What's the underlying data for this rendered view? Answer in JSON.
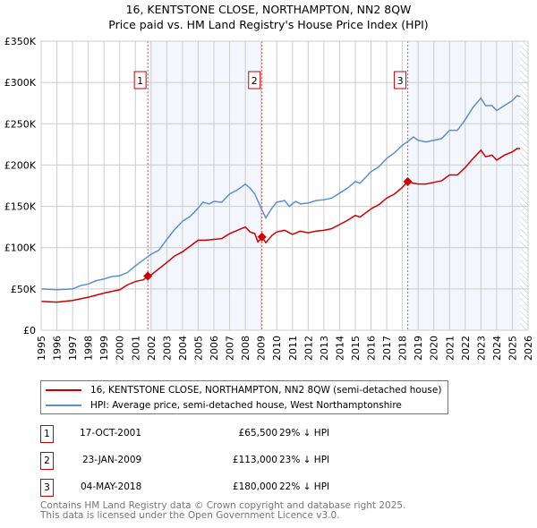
{
  "title": "16, KENTSTONE CLOSE, NORTHAMPTON, NN2 8QW",
  "subtitle": "Price paid vs. HM Land Registry's House Price Index (HPI)",
  "chart_data": {
    "type": "line",
    "title": "16, KENTSTONE CLOSE, NORTHAMPTON, NN2 8QW",
    "subtitle": "Price paid vs. HM Land Registry's House Price Index (HPI)",
    "xlim": [
      1995,
      2026
    ],
    "ylim": [
      0,
      350000
    ],
    "x_ticks": [
      1995,
      1996,
      1997,
      1998,
      1999,
      2000,
      2001,
      2002,
      2003,
      2004,
      2005,
      2006,
      2007,
      2008,
      2009,
      2010,
      2011,
      2012,
      2013,
      2014,
      2015,
      2016,
      2017,
      2018,
      2019,
      2020,
      2021,
      2022,
      2023,
      2024,
      2025,
      2026
    ],
    "y_ticks": [
      {
        "v": 0,
        "label": "£0"
      },
      {
        "v": 50000,
        "label": "£50K"
      },
      {
        "v": 100000,
        "label": "£100K"
      },
      {
        "v": 150000,
        "label": "£150K"
      },
      {
        "v": 200000,
        "label": "£200K"
      },
      {
        "v": 250000,
        "label": "£250K"
      },
      {
        "v": 300000,
        "label": "£300K"
      },
      {
        "v": 350000,
        "label": "£350K"
      }
    ],
    "grid": true,
    "shaded_ranges": [
      [
        2001.8,
        2009.07
      ],
      [
        2018.34,
        2025.5
      ]
    ],
    "hatched_from": 2025.5,
    "series": [
      {
        "name": "16, KENTSTONE CLOSE, NORTHAMPTON, NN2 8QW (semi-detached house)",
        "color": "#cc0000",
        "points": [
          [
            1995,
            35
          ],
          [
            1996,
            34
          ],
          [
            1997,
            36
          ],
          [
            1998,
            40
          ],
          [
            1999,
            45
          ],
          [
            2000,
            49
          ],
          [
            2000.5,
            55
          ],
          [
            2001,
            59
          ],
          [
            2001.5,
            61
          ],
          [
            2001.8,
            65.5
          ],
          [
            2002,
            67
          ],
          [
            2003,
            82
          ],
          [
            2003.5,
            90
          ],
          [
            2004,
            95
          ],
          [
            2005,
            109
          ],
          [
            2005.5,
            109
          ],
          [
            2006,
            110
          ],
          [
            2006.5,
            111
          ],
          [
            2007,
            117
          ],
          [
            2007.5,
            121
          ],
          [
            2008,
            125
          ],
          [
            2008.3,
            119
          ],
          [
            2008.6,
            117
          ],
          [
            2008.8,
            107
          ],
          [
            2009.07,
            113
          ],
          [
            2009.3,
            106
          ],
          [
            2009.7,
            115
          ],
          [
            2010,
            119
          ],
          [
            2010.5,
            121
          ],
          [
            2011,
            116
          ],
          [
            2011.5,
            120
          ],
          [
            2012,
            118
          ],
          [
            2012.5,
            120
          ],
          [
            2013,
            121
          ],
          [
            2013.5,
            123
          ],
          [
            2014,
            128
          ],
          [
            2014.5,
            133
          ],
          [
            2015,
            139
          ],
          [
            2015.3,
            137
          ],
          [
            2016,
            147
          ],
          [
            2016.5,
            152
          ],
          [
            2017,
            160
          ],
          [
            2017.5,
            165
          ],
          [
            2018,
            173
          ],
          [
            2018.34,
            180
          ],
          [
            2018.7,
            178
          ],
          [
            2019,
            177
          ],
          [
            2019.5,
            177
          ],
          [
            2020,
            179
          ],
          [
            2020.5,
            181
          ],
          [
            2021,
            188
          ],
          [
            2021.5,
            188
          ],
          [
            2022,
            197
          ],
          [
            2022.5,
            208
          ],
          [
            2023,
            218
          ],
          [
            2023.3,
            210
          ],
          [
            2023.7,
            212
          ],
          [
            2024,
            206
          ],
          [
            2024.5,
            212
          ],
          [
            2025,
            216
          ],
          [
            2025.3,
            220
          ],
          [
            2025.5,
            220
          ]
        ]
      },
      {
        "name": "HPI: Average price, semi-detached house, West Northamptonshire",
        "color": "#5b8fd4",
        "points": [
          [
            1995,
            50
          ],
          [
            1996,
            49
          ],
          [
            1997,
            50
          ],
          [
            1997.5,
            54
          ],
          [
            1998,
            56
          ],
          [
            1998.5,
            60
          ],
          [
            1999,
            62
          ],
          [
            1999.5,
            65
          ],
          [
            2000,
            66
          ],
          [
            2000.5,
            70
          ],
          [
            2001,
            78
          ],
          [
            2001.5,
            85
          ],
          [
            2002,
            92
          ],
          [
            2002.5,
            97
          ],
          [
            2003,
            110
          ],
          [
            2003.5,
            122
          ],
          [
            2004,
            132
          ],
          [
            2004.5,
            138
          ],
          [
            2005,
            148
          ],
          [
            2005.3,
            155
          ],
          [
            2005.7,
            153
          ],
          [
            2006,
            156
          ],
          [
            2006.5,
            155
          ],
          [
            2007,
            165
          ],
          [
            2007.5,
            170
          ],
          [
            2008,
            177
          ],
          [
            2008.3,
            172
          ],
          [
            2008.6,
            165
          ],
          [
            2009,
            148
          ],
          [
            2009.3,
            136
          ],
          [
            2009.7,
            148
          ],
          [
            2010,
            155
          ],
          [
            2010.5,
            157
          ],
          [
            2010.8,
            150
          ],
          [
            2011.2,
            156
          ],
          [
            2011.5,
            153
          ],
          [
            2012,
            154
          ],
          [
            2012.5,
            157
          ],
          [
            2013,
            158
          ],
          [
            2013.5,
            160
          ],
          [
            2014,
            166
          ],
          [
            2014.5,
            172
          ],
          [
            2015,
            180
          ],
          [
            2015.3,
            178
          ],
          [
            2016,
            192
          ],
          [
            2016.5,
            198
          ],
          [
            2017,
            208
          ],
          [
            2017.5,
            215
          ],
          [
            2018,
            224
          ],
          [
            2018.3,
            228
          ],
          [
            2018.7,
            234
          ],
          [
            2019,
            230
          ],
          [
            2019.5,
            228
          ],
          [
            2020,
            230
          ],
          [
            2020.5,
            232
          ],
          [
            2021,
            242
          ],
          [
            2021.5,
            242
          ],
          [
            2022,
            255
          ],
          [
            2022.5,
            270
          ],
          [
            2023,
            281
          ],
          [
            2023.3,
            272
          ],
          [
            2023.7,
            272
          ],
          [
            2024,
            266
          ],
          [
            2024.5,
            272
          ],
          [
            2025,
            278
          ],
          [
            2025.3,
            284
          ],
          [
            2025.5,
            283
          ]
        ]
      }
    ],
    "sales": [
      {
        "n": "1",
        "x": 2001.79,
        "y": 65500
      },
      {
        "n": "2",
        "x": 2009.06,
        "y": 113000
      },
      {
        "n": "3",
        "x": 2018.34,
        "y": 180000
      }
    ]
  },
  "legend": [
    "16, KENTSTONE CLOSE, NORTHAMPTON, NN2 8QW (semi-detached house)",
    "HPI: Average price, semi-detached house, West Northamptonshire"
  ],
  "transactions": [
    {
      "n": "1",
      "date": "17-OCT-2001",
      "price": "£65,500",
      "hpi": "29% ↓ HPI"
    },
    {
      "n": "2",
      "date": "23-JAN-2009",
      "price": "£113,000",
      "hpi": "23% ↓ HPI"
    },
    {
      "n": "3",
      "date": "04-MAY-2018",
      "price": "£180,000",
      "hpi": "22% ↓ HPI"
    }
  ],
  "footer": [
    "Contains HM Land Registry data © Crown copyright and database right 2025.",
    "This data is licensed under the Open Government Licence v3.0."
  ]
}
